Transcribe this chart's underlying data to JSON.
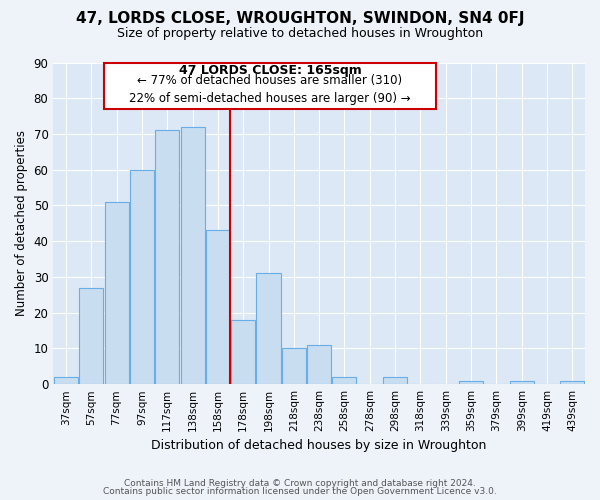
{
  "title": "47, LORDS CLOSE, WROUGHTON, SWINDON, SN4 0FJ",
  "subtitle": "Size of property relative to detached houses in Wroughton",
  "xlabel": "Distribution of detached houses by size in Wroughton",
  "ylabel": "Number of detached properties",
  "bar_labels": [
    "37sqm",
    "57sqm",
    "77sqm",
    "97sqm",
    "117sqm",
    "138sqm",
    "158sqm",
    "178sqm",
    "198sqm",
    "218sqm",
    "238sqm",
    "258sqm",
    "278sqm",
    "298sqm",
    "318sqm",
    "339sqm",
    "359sqm",
    "379sqm",
    "399sqm",
    "419sqm",
    "439sqm"
  ],
  "bar_values": [
    2,
    27,
    51,
    60,
    71,
    72,
    43,
    18,
    31,
    10,
    11,
    2,
    0,
    2,
    0,
    0,
    1,
    0,
    1,
    0,
    1
  ],
  "bar_color": "#c8ddf0",
  "bar_edge_color": "#6aaee8",
  "vline_color": "#cc0000",
  "vline_x_idx": 6,
  "ylim": [
    0,
    90
  ],
  "yticks": [
    0,
    10,
    20,
    30,
    40,
    50,
    60,
    70,
    80,
    90
  ],
  "annotation_title": "47 LORDS CLOSE: 165sqm",
  "annotation_line1": "← 77% of detached houses are smaller (310)",
  "annotation_line2": "22% of semi-detached houses are larger (90) →",
  "annotation_box_color": "#ffffff",
  "annotation_box_edge": "#cc0000",
  "footer1": "Contains HM Land Registry data © Crown copyright and database right 2024.",
  "footer2": "Contains public sector information licensed under the Open Government Licence v3.0.",
  "bg_color": "#eef3fa",
  "plot_bg_color": "#dce8f5"
}
